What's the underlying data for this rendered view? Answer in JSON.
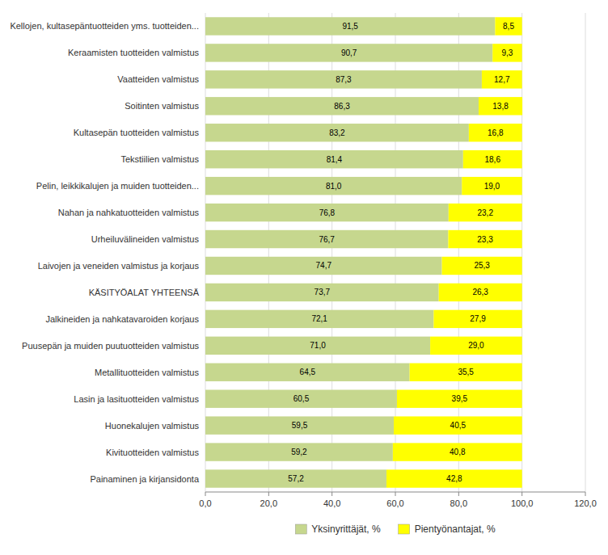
{
  "chart_data": {
    "type": "bar",
    "orientation": "horizontal",
    "stacked": true,
    "categories": [
      "Kellojen, kultasepäntuotteiden yms. tuotteiden...",
      "Keraamisten tuotteiden valmistus",
      "Vaatteiden valmistus",
      "Soitinten valmistus",
      "Kultasepän tuotteiden valmistus",
      "Tekstiilien valmistus",
      "Pelin, leikkikalujen ja muiden tuotteiden...",
      "Nahan ja nahkatuotteiden valmistus",
      "Urheiluvälineiden valmistus",
      "Laivojen ja veneiden valmistus ja korjaus",
      "KÄSITYÖALAT YHTEENSÄ",
      "Jalkineiden ja nahkatavaroiden korjaus",
      "Puusepän ja muiden puutuotteiden valmistus",
      "Metallituotteiden valmistus",
      "Lasin ja lasituotteiden valmistus",
      "Huonekalujen valmistus",
      "Kivituotteiden valmistus",
      "Painaminen ja kirjansidonta"
    ],
    "series": [
      {
        "name": "Yksinyrittäjät, %",
        "color": "#c6d78e",
        "values": [
          91.5,
          90.7,
          87.3,
          86.3,
          83.2,
          81.4,
          81.0,
          76.8,
          76.7,
          74.7,
          73.7,
          72.1,
          71.0,
          64.5,
          60.5,
          59.5,
          59.2,
          57.2
        ],
        "value_labels": [
          "91,5",
          "90,7",
          "87,3",
          "86,3",
          "83,2",
          "81,4",
          "81,0",
          "76,8",
          "76,7",
          "74,7",
          "73,7",
          "72,1",
          "71,0",
          "64,5",
          "60,5",
          "59,5",
          "59,2",
          "57,2"
        ]
      },
      {
        "name": "Pientyönantajat, %",
        "color": "#ffff00",
        "values": [
          8.5,
          9.3,
          12.7,
          13.8,
          16.8,
          18.6,
          19.0,
          23.2,
          23.3,
          25.3,
          26.3,
          27.9,
          29.0,
          35.5,
          39.5,
          40.5,
          40.8,
          42.8
        ],
        "value_labels": [
          "8,5",
          "9,3",
          "12,7",
          "13,8",
          "16,8",
          "18,6",
          "19,0",
          "23,2",
          "23,3",
          "25,3",
          "26,3",
          "27,9",
          "29,0",
          "35,5",
          "39,5",
          "40,5",
          "40,8",
          "42,8"
        ]
      }
    ],
    "xlim": [
      0,
      120
    ],
    "xticks": [
      {
        "value": 0,
        "label": "0,0"
      },
      {
        "value": 20,
        "label": "20,0"
      },
      {
        "value": 40,
        "label": "40,0"
      },
      {
        "value": 60,
        "label": "60,0"
      },
      {
        "value": 80,
        "label": "80,0"
      },
      {
        "value": 100,
        "label": "100,0"
      },
      {
        "value": 120,
        "label": "120,0"
      }
    ],
    "grid": true,
    "legend": "bottom",
    "data_labels": true
  }
}
